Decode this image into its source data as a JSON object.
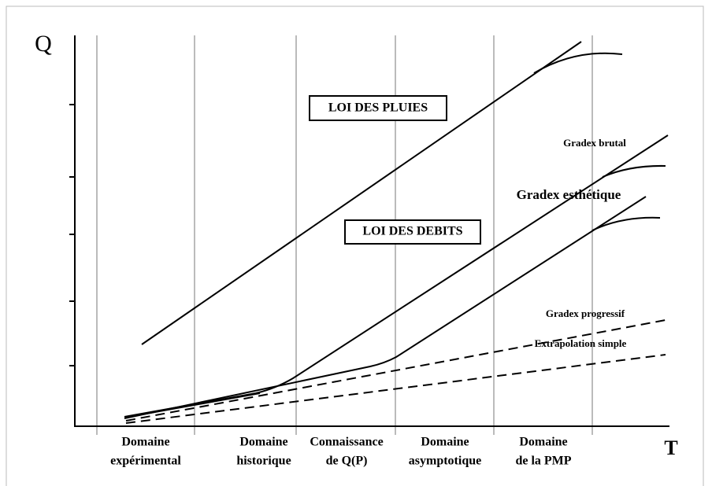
{
  "axis": {
    "y_label": "Q",
    "x_label": "T"
  },
  "boxes": [
    "LOI DES PLUIES",
    "LOI DES DEBITS"
  ],
  "annotations": [
    "Gradex brutal",
    "Gradex esthétique",
    "Gradex progressif",
    "Extrapolation simple"
  ],
  "domains": [
    [
      "Domaine",
      "expérimental"
    ],
    [
      "Domaine",
      "historique"
    ],
    [
      "Connaissance",
      "de Q(P)"
    ],
    [
      "Domaine",
      "asymptotique"
    ],
    [
      "Domaine",
      "de la PMP"
    ]
  ]
}
